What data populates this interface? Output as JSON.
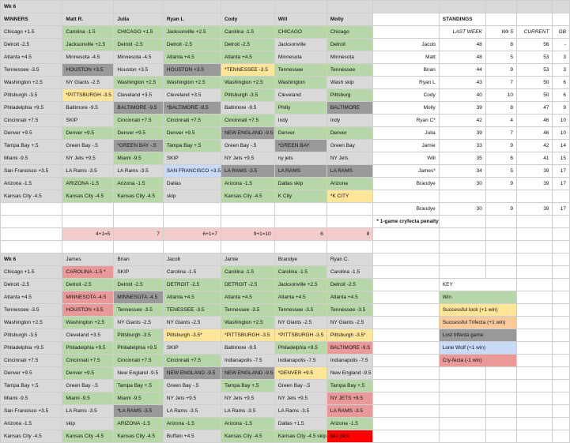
{
  "week6_label": "Wk 6",
  "sec1_headers": [
    "WINNERS",
    "Matt R.",
    "Julia",
    "Ryan L",
    "Cody",
    "Will",
    "Molly"
  ],
  "sec1_rows": [
    [
      [
        "Chicago +1.5",
        ""
      ],
      [
        "Carolina -1.5",
        "green"
      ],
      [
        "CHICAGO +1.5",
        "green"
      ],
      [
        "Jacksonville +2.5",
        "green"
      ],
      [
        "Carolina -1.5",
        "green"
      ],
      [
        "CHICAGO",
        "green"
      ],
      [
        "Chicago",
        "green"
      ]
    ],
    [
      [
        "Detroit -2.5",
        ""
      ],
      [
        "Jacksonville +2.5",
        "green"
      ],
      [
        "Detroit -2.5",
        "green"
      ],
      [
        "Detroit -2.5",
        "green"
      ],
      [
        "Detroit -2.5",
        "green"
      ],
      [
        "Jacksonville",
        ""
      ],
      [
        "Detroit",
        "green"
      ]
    ],
    [
      [
        "Atlanta +4.5",
        ""
      ],
      [
        "Minnesota -4.5",
        ""
      ],
      [
        "Minnesota -4.5",
        ""
      ],
      [
        "Atlanta +4.5",
        "green"
      ],
      [
        "Atlanta +4.5",
        "green"
      ],
      [
        "Minnesota",
        ""
      ],
      [
        "Minnesota",
        ""
      ]
    ],
    [
      [
        "Tennessee -3.5",
        ""
      ],
      [
        "HOUSTON +3.5",
        "gray"
      ],
      [
        "Houston +3.5",
        ""
      ],
      [
        "HOUSTON +3.5",
        "gray"
      ],
      [
        "*TENNESSEE -3.5",
        "yellow"
      ],
      [
        "Tennessee",
        "green"
      ],
      [
        "Tennessee",
        "green"
      ]
    ],
    [
      [
        "Washington +2.5",
        ""
      ],
      [
        "NY Giants -2.5",
        ""
      ],
      [
        "Washington +2.5",
        "green"
      ],
      [
        "Washington +2.5",
        "green"
      ],
      [
        "Washington +2.5",
        "green"
      ],
      [
        "Washington",
        "green"
      ],
      [
        "Wash skip",
        ""
      ]
    ],
    [
      [
        "Pittsburgh -3.5",
        ""
      ],
      [
        "*PITTSBURGH -3.5",
        "yellow"
      ],
      [
        "Cleveland +3.5",
        ""
      ],
      [
        "Cleveland +3.5",
        ""
      ],
      [
        "Pittsburgh -3.5",
        "green"
      ],
      [
        "Cleveland",
        ""
      ],
      [
        "Pittsburg",
        "green"
      ]
    ],
    [
      [
        "Philadelphia +9.5",
        ""
      ],
      [
        "Baltimore -9.5",
        ""
      ],
      [
        "BALTIMORE -9.5",
        "gray"
      ],
      [
        "*BALTIMORE -9.5",
        "gray"
      ],
      [
        "Baltimore -9.5",
        ""
      ],
      [
        "Philly",
        "green"
      ],
      [
        "BALTIMORE",
        "gray"
      ]
    ],
    [
      [
        "Cincinnati +7.5",
        ""
      ],
      [
        "SKIP",
        ""
      ],
      [
        "Cincinnati +7.5",
        "green"
      ],
      [
        "Cincinnati +7.5",
        "green"
      ],
      [
        "Cincinnati +7.5",
        "green"
      ],
      [
        "Indy",
        ""
      ],
      [
        "Indy",
        ""
      ]
    ],
    [
      [
        "Denver +9.5",
        ""
      ],
      [
        "Denver +9.5",
        "green"
      ],
      [
        "Denver +9.5",
        "green"
      ],
      [
        "Denver +9.5",
        "green"
      ],
      [
        "NEW ENGLAND -9.5",
        "gray"
      ],
      [
        "Denver",
        "green"
      ],
      [
        "Denver",
        "green"
      ]
    ],
    [
      [
        "Tampa Bay +.5",
        ""
      ],
      [
        "Green Bay -.5",
        ""
      ],
      [
        "*GREEN BAY -.5",
        "gray"
      ],
      [
        "Tampa Bay +.5",
        "green"
      ],
      [
        "Green Bay -.5",
        ""
      ],
      [
        "*GREEN BAY",
        "gray"
      ],
      [
        "Green Bay",
        ""
      ]
    ],
    [
      [
        "Miami -9.5",
        ""
      ],
      [
        "NY Jets +9.5",
        ""
      ],
      [
        "Miami -9.5",
        "green"
      ],
      [
        "SKIP",
        ""
      ],
      [
        "NY Jets +9.5",
        ""
      ],
      [
        "ny jets",
        ""
      ],
      [
        "NY Jets",
        ""
      ]
    ],
    [
      [
        "San Francisco +3.5",
        ""
      ],
      [
        "LA Rams -3.5",
        ""
      ],
      [
        "LA Rams -3.5",
        ""
      ],
      [
        "SAN FRANCISCO +3.5",
        "blue"
      ],
      [
        "LA RAMS -3.5",
        "gray"
      ],
      [
        "LA RAMS",
        "gray"
      ],
      [
        "LA RAMS",
        "gray"
      ]
    ],
    [
      [
        "Arizona -1.5",
        ""
      ],
      [
        "ARIZONA -1.5",
        "green"
      ],
      [
        "Arizona -1.5",
        "green"
      ],
      [
        "Dallas",
        ""
      ],
      [
        "Arizona -1.5",
        "green"
      ],
      [
        "Dallas skip",
        "green"
      ],
      [
        "Arizona",
        "green"
      ]
    ],
    [
      [
        "Kansas City -4.5",
        ""
      ],
      [
        "Kansas City -4.5",
        "green"
      ],
      [
        "Kansas City -4.5",
        "green"
      ],
      [
        "skip",
        ""
      ],
      [
        "Kansas City -4.5",
        "green"
      ],
      [
        "K City",
        "green"
      ],
      [
        "*K CITY",
        "yellow"
      ]
    ]
  ],
  "sec1_totals": [
    "",
    "4+1=5",
    "7",
    "6+1=7",
    "9+1=10",
    "6",
    "8"
  ],
  "standings": {
    "title": "STANDINGS",
    "headers": [
      "LAST WEEK",
      "Wk 5",
      "CURRENT",
      "GB"
    ],
    "rows": [
      [
        "Jacob",
        "48",
        "8",
        "56",
        "-"
      ],
      [
        "Matt",
        "48",
        "5",
        "53",
        "3"
      ],
      [
        "Brian",
        "44",
        "9",
        "53",
        "3"
      ],
      [
        "Ryan L",
        "43",
        "7",
        "50",
        "6"
      ],
      [
        "Cody",
        "40",
        "10",
        "50",
        "6"
      ],
      [
        "Molly",
        "39",
        "8",
        "47",
        "9"
      ],
      [
        "Ryan C*",
        "42",
        "4",
        "46",
        "10"
      ],
      [
        "Julia",
        "39",
        "7",
        "46",
        "10"
      ],
      [
        "Jamie",
        "33",
        "9",
        "42",
        "14"
      ],
      [
        "Will",
        "35",
        "6",
        "41",
        "15"
      ],
      [
        "James*",
        "34",
        "5",
        "39",
        "17"
      ],
      [
        "Brandye",
        "30",
        "9",
        "39",
        "17"
      ]
    ],
    "note": "* 1-game cryfecta penalty"
  },
  "sec2_headers": [
    "Wk 6",
    "James",
    "Brian",
    "Jacob",
    "Jamie",
    "Brandye",
    "Ryan C."
  ],
  "sec2_rows": [
    [
      [
        "Chicago +1.5",
        ""
      ],
      [
        "CAROLINA -1.5 *",
        "pink"
      ],
      [
        "SKIP",
        ""
      ],
      [
        "Carolina -1.5",
        ""
      ],
      [
        "Carolina -1.5",
        "green"
      ],
      [
        "Carolina -1.5",
        "green"
      ],
      [
        "Carolina -1.5",
        ""
      ]
    ],
    [
      [
        "Detroit -2.5",
        ""
      ],
      [
        "Detroit -2.5",
        "green"
      ],
      [
        "Detroit -2.5",
        "green"
      ],
      [
        "DETROIT -2.5",
        "green"
      ],
      [
        "DETROIT -2.5",
        "green"
      ],
      [
        "Jacksonville +2.5",
        "green"
      ],
      [
        "Detroit -2.5",
        "green"
      ]
    ],
    [
      [
        "Atlanta +4.5",
        ""
      ],
      [
        "MINNESOTA -4.5",
        "pink"
      ],
      [
        "MINNESOTA -4.5",
        "gray"
      ],
      [
        "Atlanta +4.5",
        "green"
      ],
      [
        "Atlanta +4.5",
        "green"
      ],
      [
        "Atlanta +4.5",
        "green"
      ],
      [
        "Atlanta +4.5",
        "green"
      ]
    ],
    [
      [
        "Tennessee -3.5",
        ""
      ],
      [
        "HOUSTON +3.5",
        "pink"
      ],
      [
        "Tennessee -3.5",
        "green"
      ],
      [
        "TENESSEE -3.5",
        "green"
      ],
      [
        "Tennessee -3.5",
        "green"
      ],
      [
        "Tennessee -3.5",
        "green"
      ],
      [
        "Tennessee -3.5",
        "green"
      ]
    ],
    [
      [
        "Washington +2.5",
        ""
      ],
      [
        "Washington +2.5",
        "green"
      ],
      [
        "NY Giants -2.5",
        ""
      ],
      [
        "NY Giants -2.5",
        ""
      ],
      [
        "Washington +2.5",
        "green"
      ],
      [
        "NY Giants -2.5",
        ""
      ],
      [
        "NY Giants -2.5",
        ""
      ]
    ],
    [
      [
        "Pittsburgh -3.5",
        ""
      ],
      [
        "Cleveland +3.5",
        ""
      ],
      [
        "Pittsburgh -3.5",
        "green"
      ],
      [
        "Pittsburgh -3.5*",
        "yellow"
      ],
      [
        "*PITTSBURGH -3.5",
        "yellow"
      ],
      [
        "*PITTSBURGH -3.5",
        "yellow"
      ],
      [
        "Pittsburgh -3.5*",
        "yellow"
      ]
    ],
    [
      [
        "Philadelphia +9.5",
        ""
      ],
      [
        "Philadelphia +9.5",
        "green"
      ],
      [
        "Philadelphia +9.5",
        "green"
      ],
      [
        "SKIP",
        ""
      ],
      [
        "Baltimore -9.5",
        ""
      ],
      [
        "Philadelphia +9.5",
        "green"
      ],
      [
        "BALTIMORE -9.5",
        "pink"
      ]
    ],
    [
      [
        "Cincinnati +7.5",
        ""
      ],
      [
        "Cincinnati +7.5",
        "green"
      ],
      [
        "Cincinnati +7.5",
        "green"
      ],
      [
        "Cincinnati +7.5",
        "green"
      ],
      [
        "Indianapolis -7.5",
        ""
      ],
      [
        "Indianapolis -7.5",
        ""
      ],
      [
        "Indianapolis -7.5",
        ""
      ]
    ],
    [
      [
        "Denver +9.5",
        ""
      ],
      [
        "Denver +9.5",
        "green"
      ],
      [
        "New England -9.5",
        ""
      ],
      [
        "NEW ENGLAND -9.5",
        "gray"
      ],
      [
        "NEW ENGLAND -9.5",
        "gray"
      ],
      [
        "*DENVER +9.5",
        "yellow"
      ],
      [
        "New England -9.5",
        ""
      ]
    ],
    [
      [
        "Tampa Bay +.5",
        ""
      ],
      [
        "Green Bay -.5",
        ""
      ],
      [
        "Tampa Bay +.5",
        "green"
      ],
      [
        "Green Bay -.5",
        ""
      ],
      [
        "Tampa Bay +.5",
        "green"
      ],
      [
        "Green Bay -.5",
        ""
      ],
      [
        "Tampa Bay +.5",
        "green"
      ]
    ],
    [
      [
        "Miami -9.5",
        ""
      ],
      [
        "Miami -9.5",
        "green"
      ],
      [
        "Miami -9.5",
        "green"
      ],
      [
        "NY Jets +9.5",
        ""
      ],
      [
        "NY Jets +9.5",
        ""
      ],
      [
        "NY Jets +9.5",
        ""
      ],
      [
        "NY JETS +9.5",
        "pink"
      ]
    ],
    [
      [
        "San Francisco +3.5",
        ""
      ],
      [
        "LA Rams -3.5",
        ""
      ],
      [
        "*LA RAMS -3.5",
        "gray"
      ],
      [
        "LA Rams -3.5",
        ""
      ],
      [
        "LA Rams -3.5",
        ""
      ],
      [
        "LA Rams -3.5",
        ""
      ],
      [
        "LA RAMS -3.5",
        "pink"
      ]
    ],
    [
      [
        "Arizona -1.5",
        ""
      ],
      [
        "skip",
        ""
      ],
      [
        "ARIZONA -1.5",
        "green"
      ],
      [
        "Arizona -1.5",
        "green"
      ],
      [
        "Arizona -1.5",
        "green"
      ],
      [
        "Dallas +1.5",
        ""
      ],
      [
        "Arizona -1.5",
        "green"
      ]
    ],
    [
      [
        "Kansas City -4.5",
        ""
      ],
      [
        "Kansas City -4.5",
        "green"
      ],
      [
        "Kansas City -4.5",
        "green"
      ],
      [
        "Buffalo +4.5",
        ""
      ],
      [
        "Kansas City -4.5",
        "green"
      ],
      [
        "Kansas City -4.5 skip",
        "green"
      ],
      [
        "late pick",
        "red"
      ]
    ]
  ],
  "key": {
    "title": "KEY",
    "items": [
      [
        "Win",
        "green"
      ],
      [
        "Successful lock (+1 win)",
        "yellow"
      ],
      [
        "Successful Trifecta (+1 win)",
        "orange"
      ],
      [
        "Lost trifecta game",
        "gray"
      ],
      [
        "Lone Wolf (+1 win)",
        "blue"
      ],
      [
        "Cry-fecta (-1 win)",
        "pink"
      ]
    ]
  }
}
